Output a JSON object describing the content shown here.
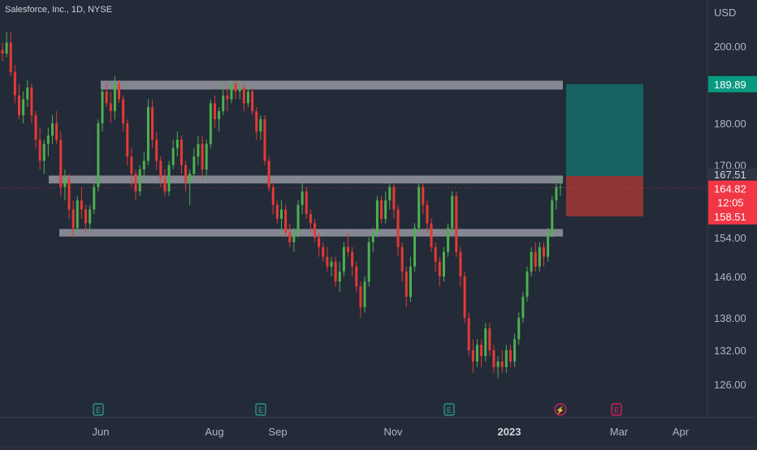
{
  "header": {
    "title": "Salesforce, Inc., 1D, NYSE"
  },
  "colors": {
    "background": "#232a38",
    "text": "#b2b5be",
    "up": "#4caf50",
    "down": "#e53935",
    "zone": "#9598a1",
    "target_box": "#156363",
    "stop_box": "#8e3535",
    "price_badge_green": "#089981",
    "price_badge_red": "#f23645"
  },
  "icons": {
    "earnings": "E",
    "dividend": "⚡"
  },
  "chart_data": {
    "type": "candlestick",
    "title": "Salesforce, Inc., 1D, NYSE",
    "currency": "USD",
    "ylim": [
      120,
      212
    ],
    "y_scale": "log",
    "y_ticks": [
      "200.00",
      "180.00",
      "170.00",
      "154.00",
      "146.00",
      "138.00",
      "132.00",
      "126.00"
    ],
    "x_ticks": [
      "Jun",
      "Aug",
      "Sep",
      "Nov",
      "2023",
      "Mar",
      "Apr"
    ],
    "price_labels": {
      "target": "189.89",
      "entry": "167.51",
      "last": "164.82",
      "countdown": "12:05",
      "stop": "158.51"
    },
    "zones": [
      {
        "from": 188.5,
        "to": 190.8
      },
      {
        "from": 165.8,
        "to": 167.6
      },
      {
        "from": 154.2,
        "to": 155.8
      }
    ],
    "position": {
      "entry": 167.51,
      "target": 189.89,
      "stop": 158.51
    },
    "events": [
      "E",
      "E",
      "E",
      "⚡",
      "E"
    ],
    "candles": [
      [
        199,
        201,
        196,
        198
      ],
      [
        198,
        204,
        197,
        201
      ],
      [
        201,
        204,
        192,
        193
      ],
      [
        193,
        195,
        185,
        187
      ],
      [
        187,
        190,
        181,
        182
      ],
      [
        182,
        188,
        180,
        186
      ],
      [
        186,
        191,
        184,
        189
      ],
      [
        189,
        190,
        180,
        182
      ],
      [
        182,
        183,
        174,
        176
      ],
      [
        176,
        179,
        169,
        171
      ],
      [
        171,
        176,
        168,
        175
      ],
      [
        175,
        179,
        172,
        177
      ],
      [
        177,
        182,
        175,
        180
      ],
      [
        180,
        183,
        175,
        176
      ],
      [
        176,
        178,
        163,
        165
      ],
      [
        165,
        169,
        162,
        167
      ],
      [
        167,
        168,
        158,
        160
      ],
      [
        160,
        162,
        154,
        156
      ],
      [
        156,
        163,
        155,
        162
      ],
      [
        162,
        165,
        158,
        160
      ],
      [
        160,
        161,
        155,
        157
      ],
      [
        157,
        161,
        155,
        160
      ],
      [
        160,
        166,
        159,
        165
      ],
      [
        165,
        181,
        164,
        180
      ],
      [
        180,
        189,
        178,
        188
      ],
      [
        188,
        190,
        184,
        185
      ],
      [
        185,
        188,
        180,
        183
      ],
      [
        183,
        192,
        181,
        190
      ],
      [
        190,
        191,
        185,
        186
      ],
      [
        186,
        187,
        178,
        180
      ],
      [
        180,
        181,
        170,
        172
      ],
      [
        172,
        174,
        165,
        168
      ],
      [
        168,
        169,
        162,
        164
      ],
      [
        164,
        170,
        163,
        169
      ],
      [
        169,
        173,
        167,
        171
      ],
      [
        171,
        186,
        170,
        184
      ],
      [
        184,
        186,
        174,
        176
      ],
      [
        176,
        178,
        169,
        171
      ],
      [
        171,
        172,
        165,
        167
      ],
      [
        167,
        169,
        163,
        164
      ],
      [
        164,
        171,
        163,
        170
      ],
      [
        170,
        176,
        169,
        174
      ],
      [
        174,
        178,
        172,
        176
      ],
      [
        176,
        177,
        168,
        170
      ],
      [
        170,
        171,
        164,
        166
      ],
      [
        166,
        169,
        161,
        168
      ],
      [
        168,
        174,
        167,
        172
      ],
      [
        172,
        177,
        170,
        175
      ],
      [
        175,
        177,
        167,
        169
      ],
      [
        169,
        176,
        167,
        175
      ],
      [
        175,
        186,
        174,
        185
      ],
      [
        185,
        187,
        179,
        181
      ],
      [
        181,
        184,
        178,
        183
      ],
      [
        183,
        190,
        182,
        187
      ],
      [
        187,
        189,
        183,
        186
      ],
      [
        186,
        191,
        185,
        190
      ],
      [
        190,
        191,
        186,
        188
      ],
      [
        188,
        191,
        186,
        189
      ],
      [
        189,
        190,
        183,
        185
      ],
      [
        185,
        189,
        184,
        188
      ],
      [
        188,
        189,
        182,
        183
      ],
      [
        183,
        184,
        176,
        178
      ],
      [
        178,
        182,
        176,
        181
      ],
      [
        181,
        182,
        170,
        171
      ],
      [
        171,
        172,
        164,
        165
      ],
      [
        165,
        166,
        159,
        161
      ],
      [
        161,
        162,
        157,
        158
      ],
      [
        158,
        162,
        155,
        160
      ],
      [
        160,
        161,
        154,
        155
      ],
      [
        155,
        157,
        152,
        153
      ],
      [
        153,
        156,
        151,
        155
      ],
      [
        155,
        162,
        154,
        161
      ],
      [
        161,
        166,
        159,
        164
      ],
      [
        164,
        165,
        158,
        159
      ],
      [
        159,
        160,
        155,
        157
      ],
      [
        157,
        158,
        153,
        154
      ],
      [
        154,
        155,
        150,
        152
      ],
      [
        152,
        153,
        149,
        150
      ],
      [
        150,
        152,
        147,
        148
      ],
      [
        148,
        150,
        146,
        149
      ],
      [
        149,
        150,
        144,
        145
      ],
      [
        145,
        149,
        143,
        147
      ],
      [
        147,
        153,
        146,
        152
      ],
      [
        152,
        155,
        150,
        151
      ],
      [
        151,
        152,
        146,
        148
      ],
      [
        148,
        149,
        143,
        144
      ],
      [
        144,
        145,
        138,
        140
      ],
      [
        140,
        146,
        139,
        145
      ],
      [
        145,
        154,
        144,
        153
      ],
      [
        153,
        156,
        151,
        155
      ],
      [
        155,
        163,
        154,
        162
      ],
      [
        162,
        163,
        157,
        158
      ],
      [
        158,
        164,
        157,
        162
      ],
      [
        162,
        166,
        160,
        165
      ],
      [
        165,
        166,
        158,
        160
      ],
      [
        160,
        161,
        150,
        152
      ],
      [
        152,
        153,
        145,
        147
      ],
      [
        147,
        148,
        140,
        142
      ],
      [
        142,
        150,
        141,
        148
      ],
      [
        148,
        157,
        147,
        156
      ],
      [
        156,
        166,
        155,
        165
      ],
      [
        165,
        166,
        159,
        161
      ],
      [
        161,
        162,
        155,
        157
      ],
      [
        157,
        158,
        151,
        152
      ],
      [
        152,
        153,
        147,
        149
      ],
      [
        149,
        150,
        144,
        146
      ],
      [
        146,
        152,
        145,
        151
      ],
      [
        151,
        157,
        150,
        156
      ],
      [
        156,
        164,
        155,
        163
      ],
      [
        163,
        164,
        150,
        151
      ],
      [
        151,
        152,
        144,
        146
      ],
      [
        146,
        147,
        137,
        138
      ],
      [
        138,
        139,
        131,
        132
      ],
      [
        132,
        134,
        128,
        130
      ],
      [
        130,
        134,
        129,
        133
      ],
      [
        133,
        134,
        129,
        131
      ],
      [
        131,
        137,
        130,
        136
      ],
      [
        136,
        137,
        131,
        132
      ],
      [
        132,
        133,
        128,
        129
      ],
      [
        129,
        131,
        127,
        130
      ],
      [
        130,
        132,
        128,
        129
      ],
      [
        129,
        133,
        128,
        132
      ],
      [
        132,
        133,
        129,
        130
      ],
      [
        130,
        135,
        129,
        134
      ],
      [
        134,
        139,
        133,
        138
      ],
      [
        138,
        143,
        137,
        142
      ],
      [
        142,
        148,
        141,
        147
      ],
      [
        147,
        152,
        146,
        151
      ],
      [
        151,
        153,
        147,
        148
      ],
      [
        148,
        153,
        147,
        152
      ],
      [
        152,
        153,
        148,
        150
      ],
      [
        150,
        156,
        149,
        155
      ],
      [
        155,
        163,
        154,
        162
      ],
      [
        162,
        167,
        160,
        165
      ],
      [
        165,
        167,
        163,
        165
      ]
    ]
  }
}
